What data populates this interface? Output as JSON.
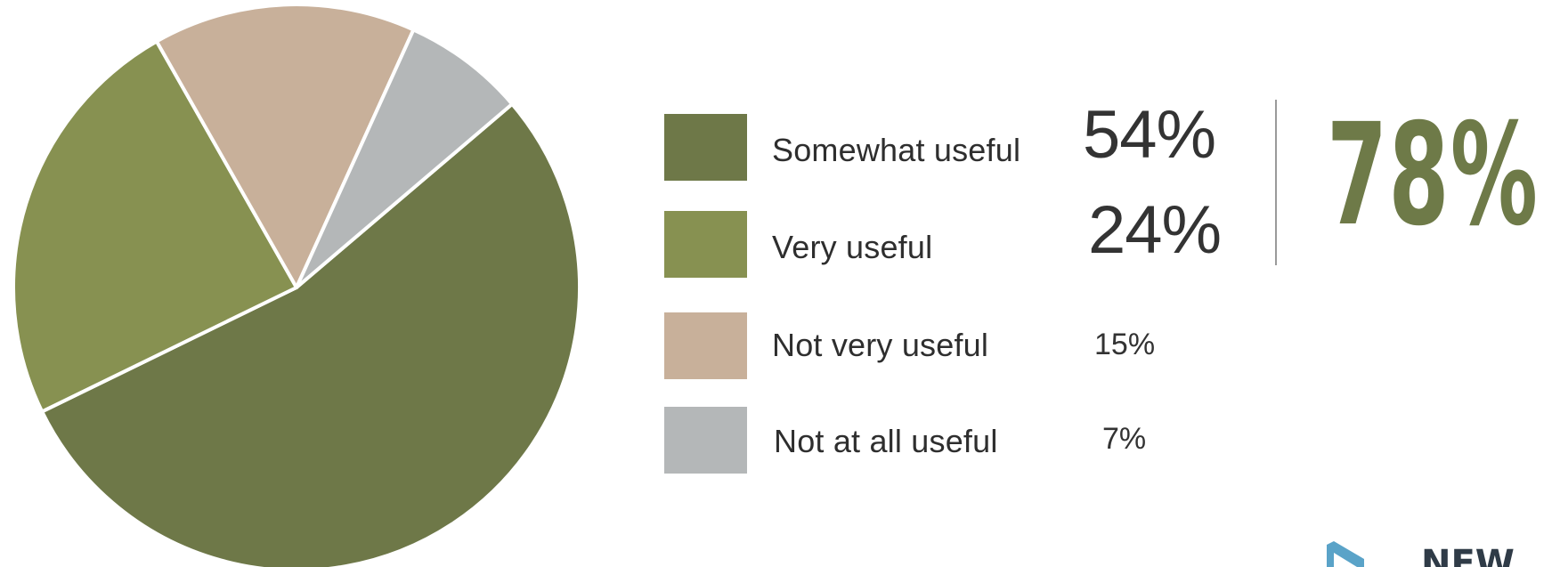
{
  "chart_data": {
    "type": "pie",
    "title": "",
    "slices": [
      {
        "label": "Somewhat useful",
        "value": 54,
        "display": "54%",
        "color": "#6e7848"
      },
      {
        "label": "Very useful",
        "value": 24,
        "display": "24%",
        "color": "#879151"
      },
      {
        "label": "Not very useful",
        "value": 15,
        "display": "15%",
        "color": "#c8b09a"
      },
      {
        "label": "Not at all useful",
        "value": 7,
        "display": "7%",
        "color": "#b4b7b8"
      }
    ],
    "legend_position": "right",
    "combined_value": "78%",
    "combined_color": "#6e7a48"
  },
  "logo": {
    "text": "NEW",
    "color": "#2f3b47",
    "mark_color": "#5aa3c8"
  }
}
